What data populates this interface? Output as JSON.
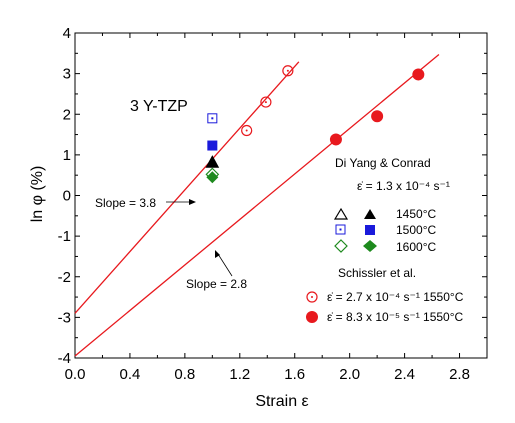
{
  "chart_data": {
    "type": "scatter",
    "xlabel": "Strain ε",
    "ylabel": "ln φ (%)",
    "xlim": [
      0.0,
      3.0
    ],
    "ylim": [
      -4,
      4
    ],
    "xticks": [
      "0.0",
      "0.4",
      "0.8",
      "1.2",
      "1.6",
      "2.0",
      "2.4",
      "2.8"
    ],
    "yticks": [
      "-4",
      "-3",
      "-2",
      "-1",
      "0",
      "1",
      "2",
      "3",
      "4"
    ],
    "grid": false,
    "material_label": "3 Y-TZP",
    "legend": {
      "placement": "right",
      "group1_title": "Di Yang & Conrad",
      "group1_rate": "ε̇ = 1.3 x 10⁻⁴ s⁻¹",
      "t1450": "1450°C",
      "t1500": "1500°C",
      "t1600": "1600°C",
      "group2_title": "Schissler et al.",
      "s_open": "ε̇ = 2.7 x 10⁻⁴ s⁻¹ 1550°C",
      "s_filled": "ε̇ = 8.3 x 10⁻⁵ s⁻¹ 1550°C"
    },
    "slope_labels": {
      "upper": "Slope = 3.8",
      "lower": "Slope = 2.8"
    },
    "fit_lines": [
      {
        "name": "Slope = 3.8",
        "slope": 3.8,
        "x": [
          0.0,
          1.63
        ],
        "y": [
          -2.9,
          3.29
        ]
      },
      {
        "name": "Slope = 2.8",
        "slope": 2.8,
        "x": [
          0.0,
          2.65
        ],
        "y": [
          -3.95,
          3.47
        ]
      }
    ],
    "series": [
      {
        "name": "Schissler et al., 2.7 x 10⁻⁴ s⁻¹, 1550°C",
        "marker": "circle-open",
        "color": "#e8191e",
        "x": [
          1.25,
          1.39,
          1.55
        ],
        "y": [
          1.6,
          2.3,
          3.07
        ]
      },
      {
        "name": "Schissler et al., 8.3 x 10⁻⁵ s⁻¹, 1550°C",
        "marker": "circle-filled",
        "color": "#e8191e",
        "x": [
          1.9,
          2.2,
          2.5
        ],
        "y": [
          1.38,
          1.95,
          2.98
        ]
      },
      {
        "name": "1450°C filled",
        "marker": "triangle-filled",
        "color": "#000000",
        "x": [
          1.0
        ],
        "y": [
          0.82
        ]
      },
      {
        "name": "1450°C open",
        "marker": "triangle-open",
        "color": "#000000",
        "x": [
          1.0
        ],
        "y": [
          0.82
        ]
      },
      {
        "name": "1500°C open",
        "marker": "square-open",
        "color": "#1a1adb",
        "x": [
          1.0
        ],
        "y": [
          1.9
        ]
      },
      {
        "name": "1500°C filled",
        "marker": "square-filled",
        "color": "#1a1adb",
        "x": [
          1.0
        ],
        "y": [
          1.23
        ]
      },
      {
        "name": "1600°C open",
        "marker": "diamond-open",
        "color": "#1e8a1e",
        "x": [
          1.0
        ],
        "y": [
          0.52
        ]
      },
      {
        "name": "1600°C filled",
        "marker": "diamond-filled",
        "color": "#1e8a1e",
        "x": [
          1.0
        ],
        "y": [
          0.45
        ]
      }
    ]
  }
}
